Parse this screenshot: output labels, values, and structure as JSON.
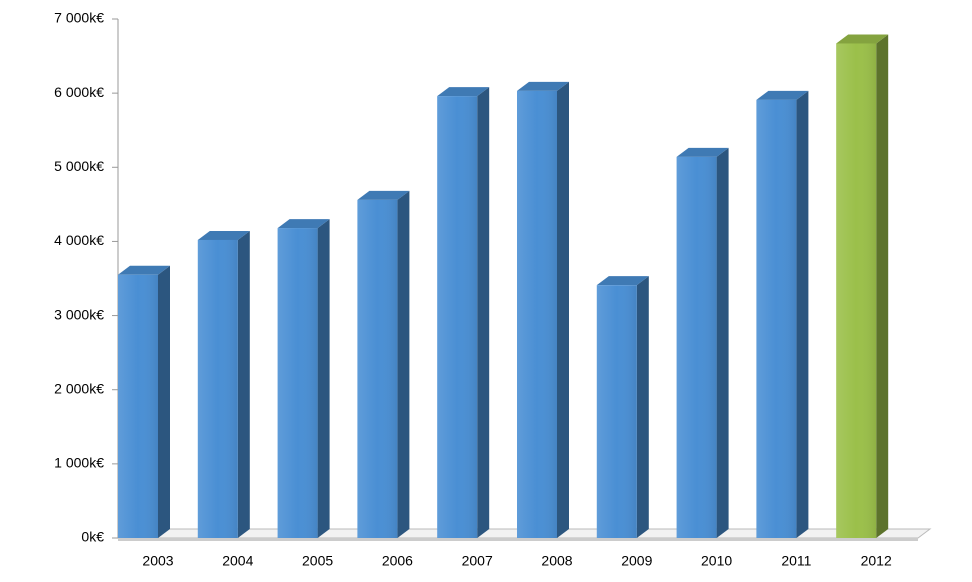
{
  "chart_data": {
    "type": "bar3d",
    "categories": [
      "2003",
      "2004",
      "2005",
      "2006",
      "2007",
      "2008",
      "2009",
      "2010",
      "2011",
      "2012"
    ],
    "values": [
      3550,
      4020,
      4180,
      4560,
      5960,
      6030,
      3410,
      5140,
      5910,
      6670
    ],
    "colors": [
      "#4a8fd4",
      "#4a8fd4",
      "#4a8fd4",
      "#4a8fd4",
      "#4a8fd4",
      "#4a8fd4",
      "#4a8fd4",
      "#4a8fd4",
      "#4a8fd4",
      "#9bc04a"
    ],
    "ylim": [
      0,
      7000
    ],
    "yticks": [
      {
        "value": 0,
        "label": "0k€"
      },
      {
        "value": 1000,
        "label": "1 000k€"
      },
      {
        "value": 2000,
        "label": "2 000k€"
      },
      {
        "value": 3000,
        "label": "3 000k€"
      },
      {
        "value": 4000,
        "label": "4 000k€"
      },
      {
        "value": 5000,
        "label": "5 000k€"
      },
      {
        "value": 6000,
        "label": "6 000k€"
      },
      {
        "value": 7000,
        "label": "7 000k€"
      }
    ]
  }
}
